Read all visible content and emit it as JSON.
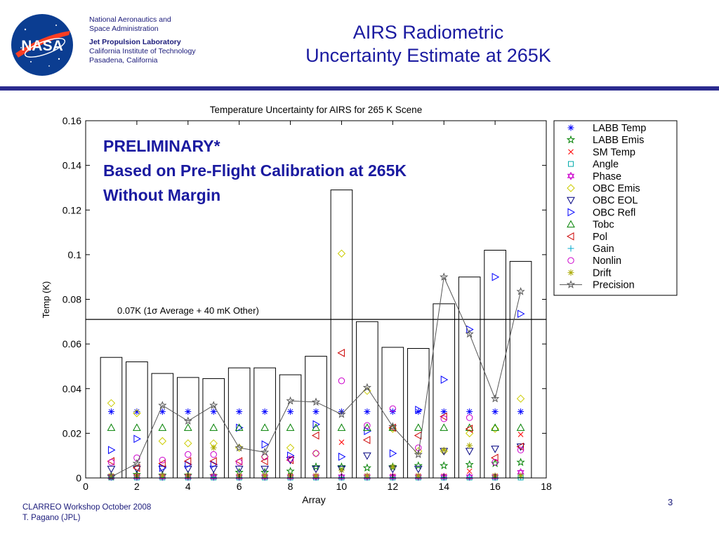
{
  "header": {
    "org_line1": "National Aeronautics and",
    "org_line2": "Space Administration",
    "jpl_line": "Jet Propulsion Laboratory",
    "caltech_line": "California Institute of Technology",
    "city_line": "Pasadena, California",
    "title_line1": "AIRS Radiometric",
    "title_line2": "Uncertainty Estimate at 265K",
    "logo_text": "NASA"
  },
  "overlay": {
    "line1": "PRELIMINARY*",
    "line2": "Based on Pre-Flight Calibration at 265K",
    "line3": "Without Margin"
  },
  "footer": {
    "line1": "CLARREO Workshop October 2008",
    "line2": "T. Pagano (JPL)",
    "page_number": "3"
  },
  "colors": {
    "brand_blue": "#1a1aa0",
    "rule": "#2b2b8f"
  },
  "chart_data": {
    "type": "scatter",
    "title": "Temperature Uncertainty for AIRS for 265 K Scene",
    "xlabel": "Array",
    "ylabel": "Temp (K)",
    "xlim": [
      0,
      18
    ],
    "ylim": [
      0,
      0.16
    ],
    "xticks": [
      0,
      2,
      4,
      6,
      8,
      10,
      12,
      14,
      16,
      18
    ],
    "yticks": [
      0,
      0.02,
      0.04,
      0.06,
      0.08,
      0.1,
      0.12,
      0.14,
      0.16
    ],
    "grid": false,
    "legend_position": "outside-right",
    "arrays": [
      1,
      2,
      3,
      4,
      5,
      6,
      7,
      8,
      9,
      10,
      11,
      12,
      13,
      14,
      15,
      16,
      17
    ],
    "bar_totals": [
      0.054,
      0.052,
      0.0468,
      0.045,
      0.0445,
      0.0493,
      0.0493,
      0.0462,
      0.0545,
      0.129,
      0.07,
      0.0585,
      0.058,
      0.078,
      0.09,
      0.102,
      0.097
    ],
    "reference_line": {
      "y": 0.071,
      "label": "0.07K (1σ Average +  40 mK Other)"
    },
    "series": [
      {
        "name": "LABB Temp",
        "marker": "asterisk",
        "color": "#0000ff",
        "values": [
          0.0297,
          0.0297,
          0.0297,
          0.0297,
          0.0297,
          0.0297,
          0.0297,
          0.0297,
          0.0297,
          0.0297,
          0.0297,
          0.0297,
          0.0297,
          0.0297,
          0.0297,
          0.0297,
          0.0297
        ]
      },
      {
        "name": "LABB Emis",
        "marker": "star",
        "color": "#008000",
        "values": [
          0.001,
          0.0015,
          0.0012,
          0.0012,
          0.001,
          0.0025,
          0.0025,
          0.003,
          0.005,
          0.005,
          0.0045,
          0.005,
          0.0055,
          0.0055,
          0.006,
          0.0065,
          0.007
        ]
      },
      {
        "name": "SM Temp",
        "marker": "x",
        "color": "#ff0000",
        "values": [
          0.0008,
          0.0008,
          0.0008,
          0.0008,
          0.0008,
          0.0008,
          0.0008,
          0.0008,
          0.0008,
          0.016,
          0.0008,
          0.0008,
          0.0008,
          0.0008,
          0.003,
          0.0008,
          0.0195
        ]
      },
      {
        "name": "Angle",
        "marker": "square",
        "color": "#00aaaa",
        "values": [
          0.0002,
          0.0002,
          0.0002,
          0.0002,
          0.0002,
          0.0002,
          0.0002,
          0.0002,
          0.0002,
          0.0002,
          0.0002,
          0.0002,
          0.0002,
          0.0002,
          0.0002,
          0.0002,
          0.0002
        ]
      },
      {
        "name": "Phase",
        "marker": "hexagram",
        "color": "#cc00cc",
        "values": [
          0.0005,
          0.0005,
          0.0005,
          0.0005,
          0.0005,
          0.0005,
          0.0005,
          0.0005,
          0.0005,
          0.0005,
          0.0005,
          0.0005,
          0.0005,
          0.0005,
          0.0005,
          0.0005,
          0.0025
        ]
      },
      {
        "name": "OBC Emis",
        "marker": "diamond",
        "color": "#cccc00",
        "values": [
          0.0335,
          0.029,
          0.0165,
          0.0155,
          0.0155,
          0.0135,
          0.0095,
          0.0135,
          0.011,
          0.1005,
          0.039,
          0.022,
          0.012,
          0.012,
          0.02,
          0.022,
          0.0355
        ]
      },
      {
        "name": "OBC EOL",
        "marker": "triangle-down",
        "color": "#000080",
        "values": [
          0.004,
          0.004,
          0.004,
          0.004,
          0.004,
          0.004,
          0.004,
          0.008,
          0.004,
          0.004,
          0.01,
          0.004,
          0.004,
          0.012,
          0.012,
          0.013,
          0.014
        ]
      },
      {
        "name": "OBC Refl",
        "marker": "triangle-right",
        "color": "#0000ff",
        "values": [
          0.0125,
          0.0175,
          0.0045,
          0.006,
          0.006,
          0.0225,
          0.015,
          0.01,
          0.024,
          0.0095,
          0.021,
          0.011,
          0.0305,
          0.044,
          0.0665,
          0.09,
          0.0735
        ]
      },
      {
        "name": "Tobc",
        "marker": "triangle-up",
        "color": "#008000",
        "values": [
          0.0225,
          0.0225,
          0.0225,
          0.0225,
          0.0225,
          0.0225,
          0.0225,
          0.0225,
          0.0225,
          0.0225,
          0.0225,
          0.0225,
          0.0225,
          0.0225,
          0.0225,
          0.0225,
          0.0225
        ]
      },
      {
        "name": "Pol",
        "marker": "triangle-left",
        "color": "#cc0000",
        "values": [
          0.0075,
          0.0045,
          0.0065,
          0.0075,
          0.0075,
          0.0075,
          0.0075,
          0.008,
          0.019,
          0.056,
          0.017,
          0.0225,
          0.019,
          0.0275,
          0.022,
          0.009,
          0.014
        ]
      },
      {
        "name": "Gain",
        "marker": "plus",
        "color": "#00aacc",
        "values": [
          0.0003,
          0.0003,
          0.0003,
          0.0003,
          0.0003,
          0.0003,
          0.0003,
          0.0003,
          0.0003,
          0.0003,
          0.0003,
          0.0003,
          0.0003,
          0.0003,
          0.0003,
          0.0003,
          0.0003
        ]
      },
      {
        "name": "Nonlin",
        "marker": "circle",
        "color": "#cc00cc",
        "values": [
          0.007,
          0.009,
          0.008,
          0.0105,
          0.0105,
          0.007,
          0.0095,
          0.0085,
          0.011,
          0.0435,
          0.0235,
          0.031,
          0.0135,
          0.0265,
          0.027,
          0.007,
          0.0125
        ]
      },
      {
        "name": "Drift",
        "marker": "asterisk",
        "color": "#aaaa00",
        "values": [
          0.001,
          0.001,
          0.001,
          0.001,
          0.0135,
          0.001,
          0.001,
          0.001,
          0.001,
          0.0035,
          0.001,
          0.005,
          0.001,
          0.0125,
          0.0145,
          0.001,
          0.001
        ]
      },
      {
        "name": "Precision",
        "marker": "star-line",
        "color": "#555555",
        "line": true,
        "values": [
          0.0005,
          0.0065,
          0.0325,
          0.0255,
          0.0325,
          0.0135,
          0.0115,
          0.0345,
          0.034,
          0.0285,
          0.0405,
          0.023,
          0.0105,
          0.09,
          0.0645,
          0.0355,
          0.0835
        ]
      }
    ]
  }
}
